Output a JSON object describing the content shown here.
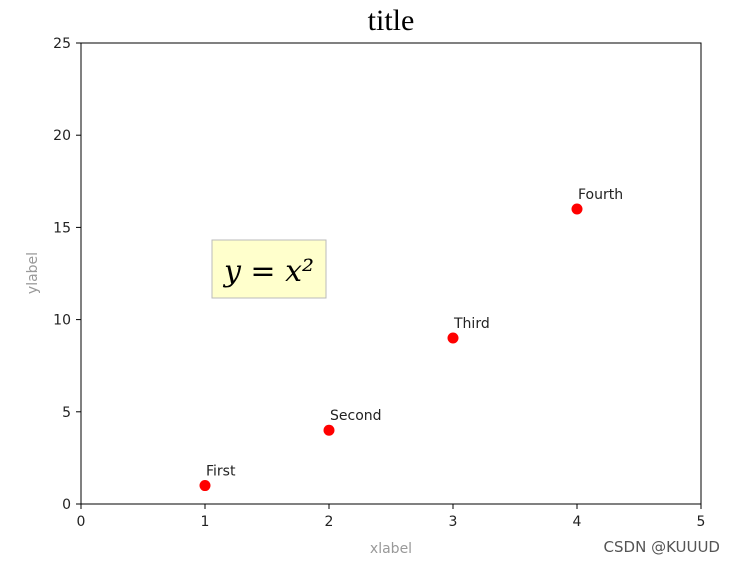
{
  "chart_data": {
    "type": "scatter",
    "title": "title",
    "xlabel": "xlabel",
    "ylabel": "ylabel",
    "x": [
      1,
      2,
      3,
      4
    ],
    "series": [
      {
        "values": [
          1,
          4,
          9,
          16
        ],
        "color": "#ff0000"
      }
    ],
    "point_labels": [
      "First",
      "Second",
      "Third",
      "Fourth"
    ],
    "annotation": "y = x²",
    "xlim": [
      0,
      5
    ],
    "xticks": [
      0,
      1,
      2,
      3,
      4,
      5
    ],
    "ylim": [
      0,
      25
    ],
    "yticks": [
      0,
      5,
      10,
      15,
      20,
      25
    ],
    "grid": false
  },
  "watermark": "CSDN @KUUUD"
}
